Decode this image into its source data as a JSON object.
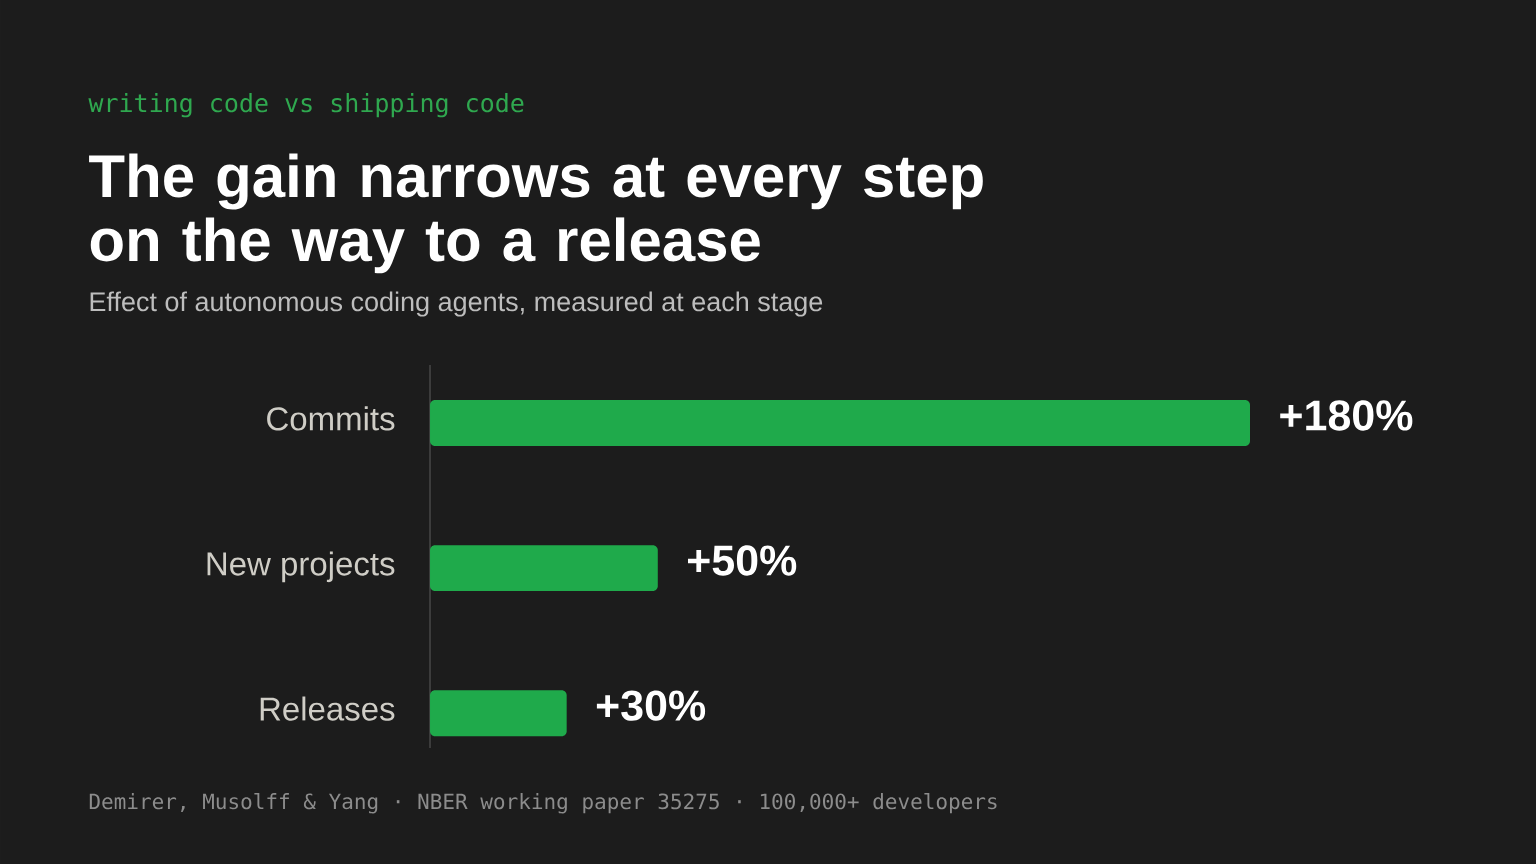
{
  "chart_data": {
    "type": "bar",
    "orientation": "horizontal",
    "title": "The gain narrows at every step on the way to a release",
    "subtitle": "Effect of autonomous coding agents, measured at each stage",
    "annotations": [
      "writing code vs shipping code",
      "Demirer, Musolff & Yang · NBER working paper 35275 · 100,000+ developers"
    ],
    "categories": [
      "Commits",
      "New projects",
      "Releases"
    ],
    "values": [
      180,
      50,
      30
    ],
    "value_labels": [
      "+180%",
      "+50%",
      "+30%"
    ],
    "color": "#1faa4b"
  }
}
